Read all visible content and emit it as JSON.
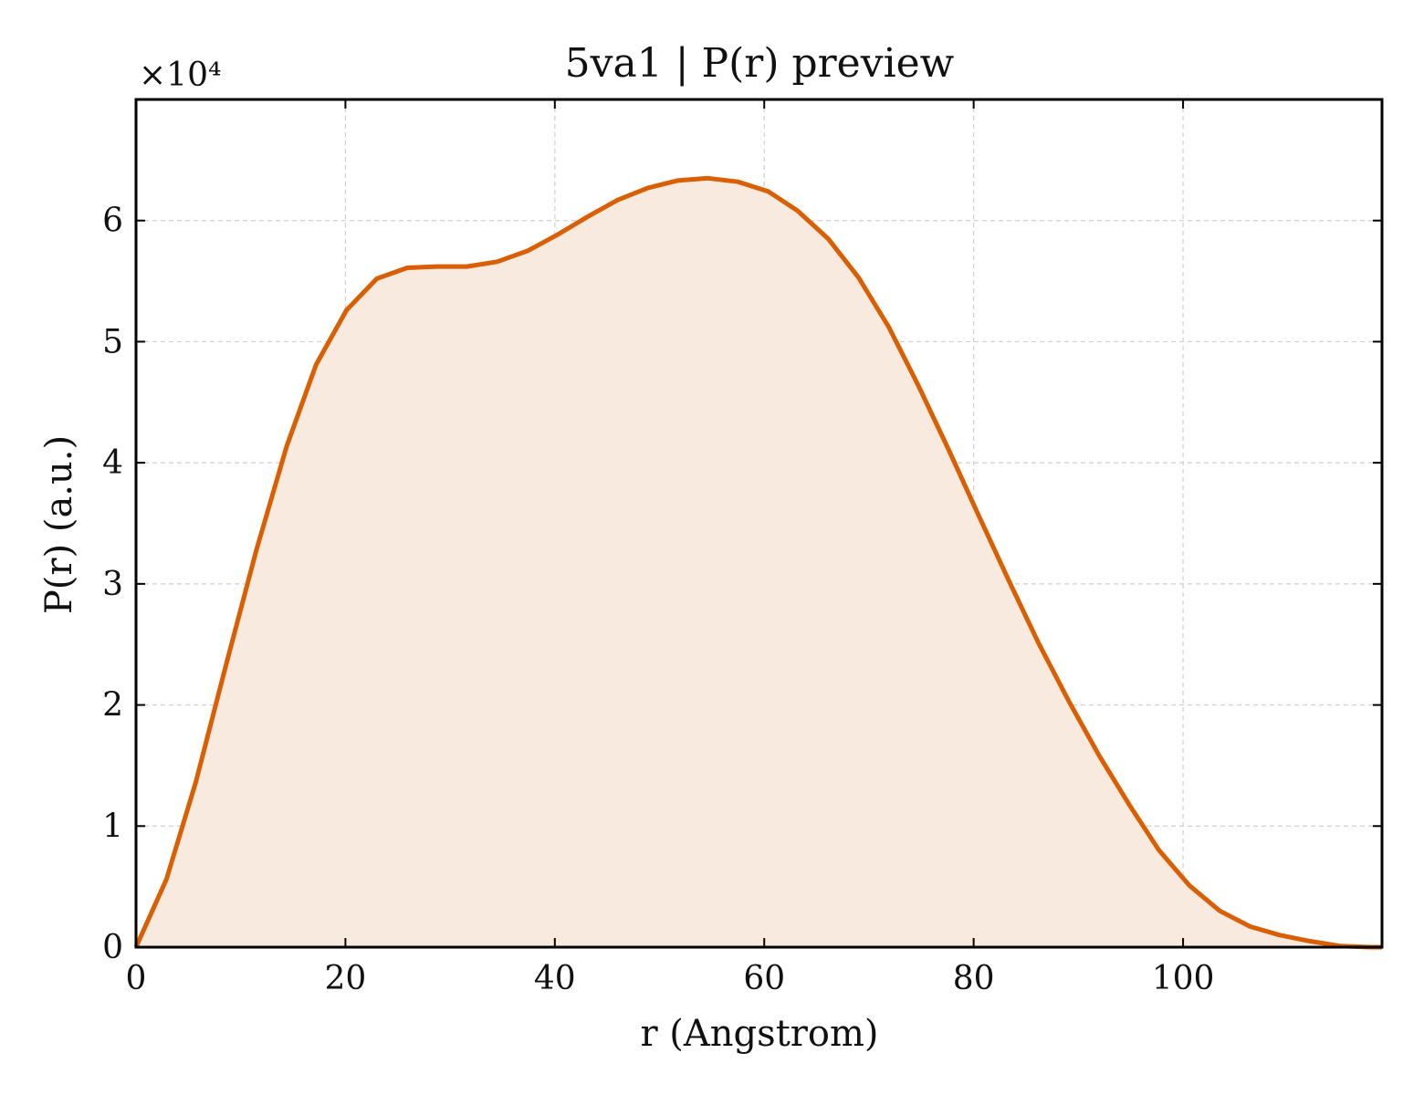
{
  "chart_data": {
    "type": "area",
    "title": "5va1 | P(r) preview",
    "xlabel": "r (Angstrom)",
    "ylabel": "P(r) (a.u.)",
    "y_offset_text": "×10⁴",
    "xlim": [
      0,
      119
    ],
    "ylim": [
      0,
      7.0
    ],
    "y_scale_multiplier": 10000,
    "x_ticks": [
      0,
      20,
      40,
      60,
      80,
      100
    ],
    "x_tick_labels": [
      "0",
      "20",
      "40",
      "60",
      "80",
      "100"
    ],
    "y_ticks": [
      0,
      1,
      2,
      3,
      4,
      5,
      6
    ],
    "y_tick_labels": [
      "0",
      "1",
      "2",
      "3",
      "4",
      "5",
      "6"
    ],
    "grid": true,
    "colors": {
      "line": "#d95f02",
      "fill": "#f8eadf"
    },
    "series": [
      {
        "x": [
          0,
          2.9,
          5.7,
          8.6,
          11.5,
          14.4,
          17.2,
          20.1,
          23.0,
          25.9,
          28.7,
          31.6,
          34.5,
          37.4,
          40.2,
          43.1,
          46.0,
          48.9,
          51.7,
          54.6,
          57.5,
          60.4,
          63.2,
          66.1,
          69.0,
          71.9,
          74.7,
          77.6,
          80.5,
          83.4,
          86.2,
          89.1,
          92.0,
          94.9,
          97.7,
          100.6,
          103.5,
          106.4,
          109.2,
          112.1,
          115.0,
          117.9,
          119.0
        ],
        "y": [
          0.0,
          0.56,
          1.36,
          2.33,
          3.28,
          4.14,
          4.81,
          5.26,
          5.52,
          5.61,
          5.62,
          5.62,
          5.66,
          5.75,
          5.88,
          6.03,
          6.17,
          6.27,
          6.33,
          6.35,
          6.32,
          6.24,
          6.08,
          5.85,
          5.53,
          5.12,
          4.64,
          4.11,
          3.56,
          3.02,
          2.51,
          2.03,
          1.58,
          1.17,
          0.8,
          0.51,
          0.3,
          0.17,
          0.1,
          0.05,
          0.01,
          0.0,
          0.0
        ]
      }
    ]
  }
}
